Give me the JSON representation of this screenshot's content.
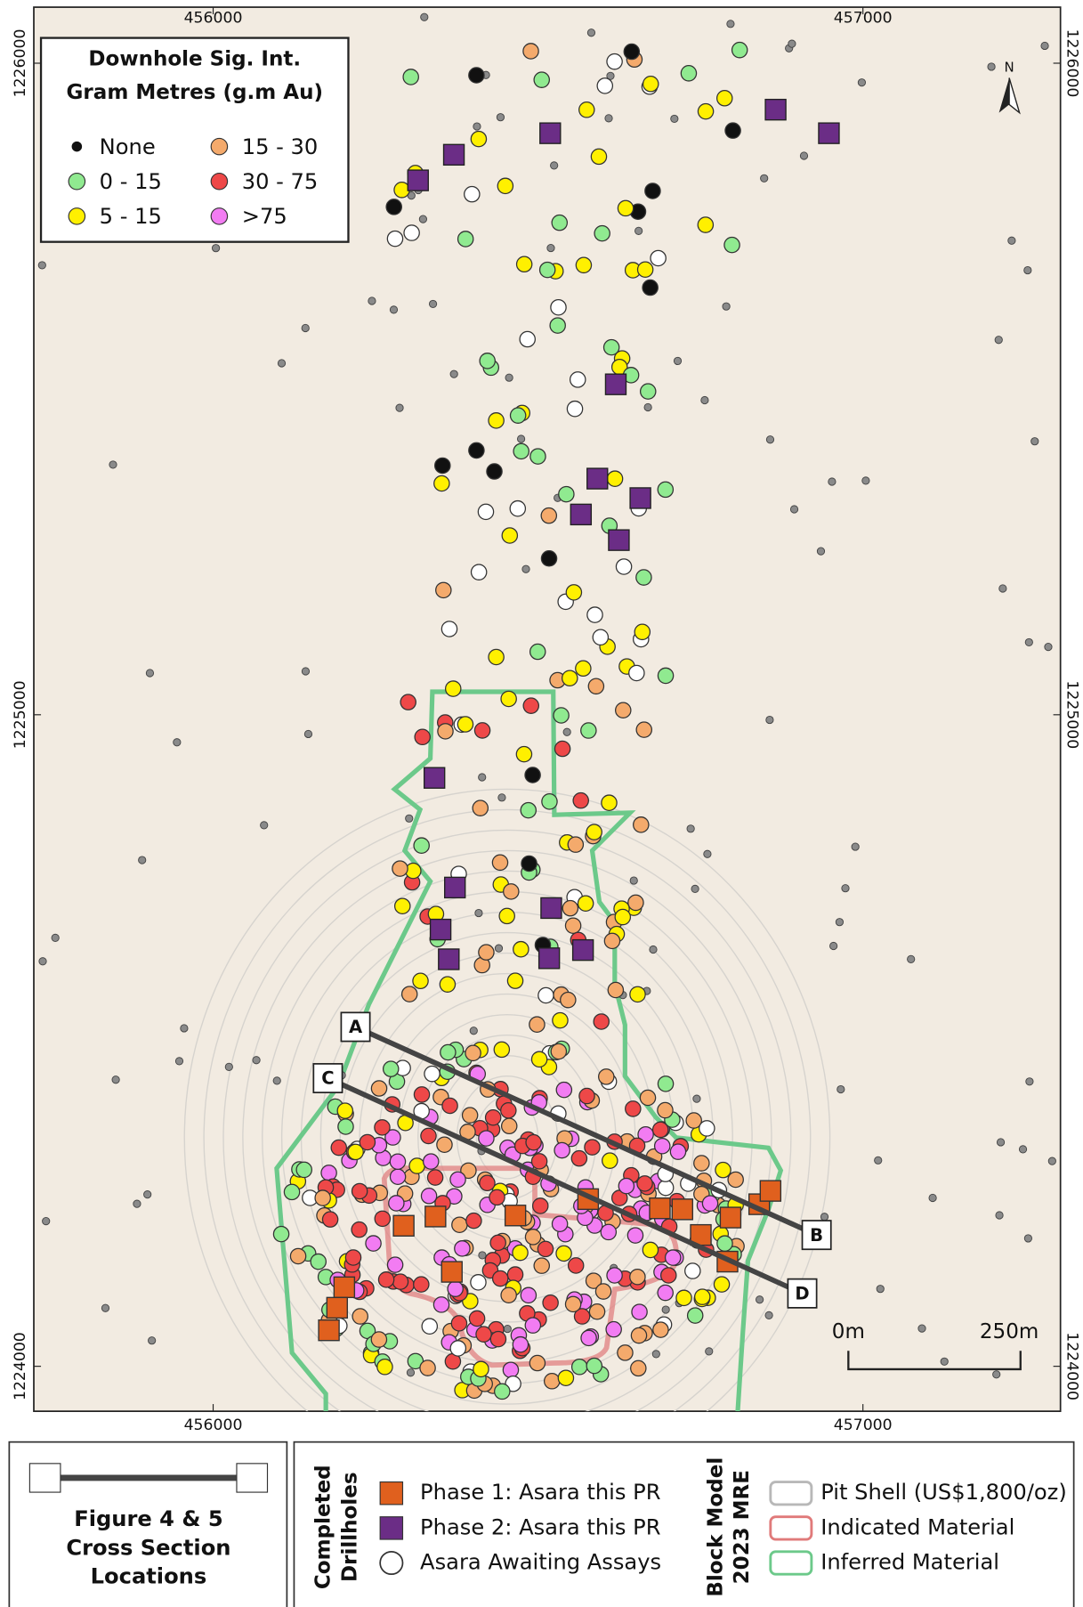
{
  "map": {
    "xlim": [
      455724,
      457304
    ],
    "ylim": [
      1223931,
      1226086
    ],
    "x_ticks": [
      456000,
      457000
    ],
    "y_ticks": [
      1224000,
      1225000,
      1226000
    ],
    "north": "N",
    "legend": {
      "title_lines": [
        "Downhole Sig. Int.",
        "Gram Metres (g.m Au)"
      ],
      "items": [
        {
          "label": "None",
          "color": "#111111"
        },
        {
          "label": "0 - 15",
          "color": "#90ea90"
        },
        {
          "label": "5 - 15",
          "color": "#fff000"
        },
        {
          "label": "15 - 30",
          "color": "#f4aa6c"
        },
        {
          "label": "30 - 75",
          "color": "#ee4848"
        },
        {
          "label": ">75",
          "color": "#f27cf2"
        }
      ]
    },
    "section_labels": [
      "A",
      "B",
      "C",
      "D"
    ],
    "scale_bar": [
      "0m",
      "250m"
    ]
  },
  "footer": {
    "cross_section": {
      "title_lines": [
        "Figure 4 & 5",
        "Cross Section",
        "Locations"
      ]
    },
    "drillholes": {
      "heading_lines": [
        "Completed",
        "Drillholes"
      ],
      "items": [
        {
          "label": "Phase 1: Asara this PR",
          "color": "#e0601e"
        },
        {
          "label": "Phase 2: Asara this PR",
          "color": "#6b2d86"
        },
        {
          "label": "Asara Awaiting Assays",
          "color": "#ffffff"
        }
      ]
    },
    "block_model": {
      "heading_lines": [
        "Block Model",
        "2023 MRE"
      ],
      "items": [
        {
          "label": "Pit Shell (US$1,800/oz)",
          "color": "#b8b8b8"
        },
        {
          "label": "Indicated Material",
          "color": "#e07a7a"
        },
        {
          "label": "Inferred Material",
          "color": "#6cc98a"
        }
      ]
    }
  }
}
